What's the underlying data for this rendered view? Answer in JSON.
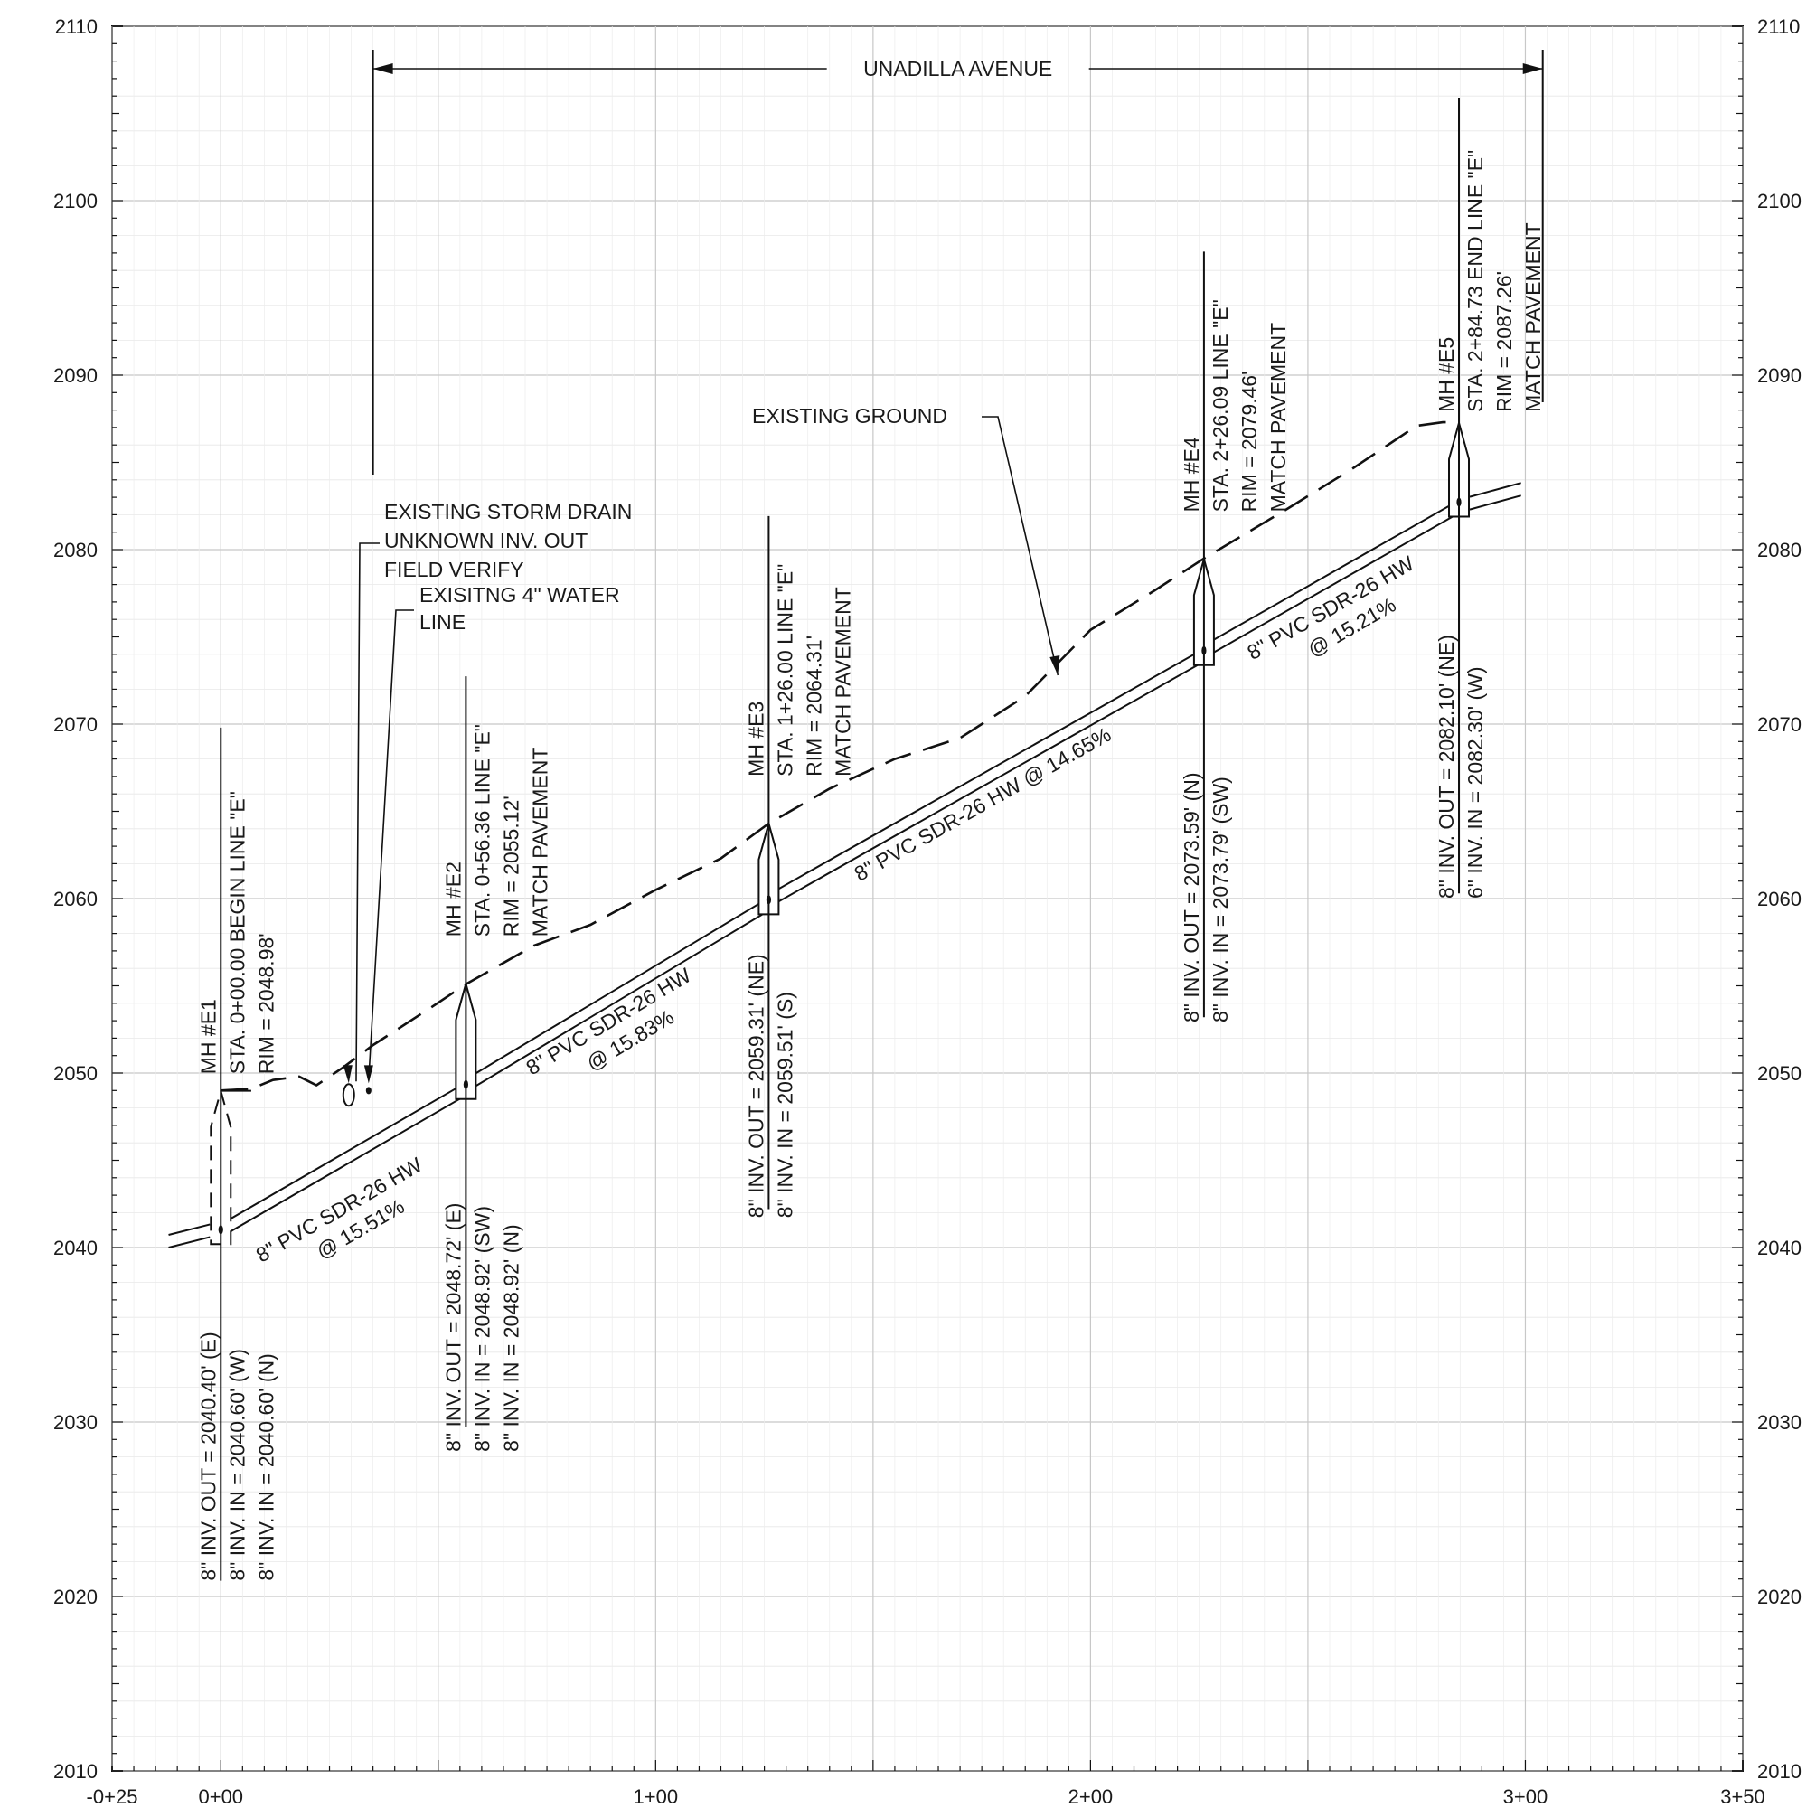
{
  "chart_data": {
    "type": "diagram",
    "x_axis": {
      "range_ft": [
        -25,
        350
      ],
      "ticks": [
        {
          "sta": -25,
          "label": "-0+25"
        },
        {
          "sta": 0,
          "label": "0+00"
        },
        {
          "sta": 100,
          "label": "1+00"
        },
        {
          "sta": 200,
          "label": "2+00"
        },
        {
          "sta": 300,
          "label": "3+00"
        },
        {
          "sta": 350,
          "label": "3+50"
        }
      ]
    },
    "y_axis": {
      "range": [
        2010,
        2110
      ],
      "ticks": [
        "2010",
        "2020",
        "2030",
        "2040",
        "2050",
        "2060",
        "2070",
        "2080",
        "2090",
        "2100",
        "2110"
      ]
    },
    "road": {
      "label": "UNADILLA AVENUE",
      "from_sta": 35,
      "to_sta": 304
    },
    "existing_ground": {
      "label": "EXISTING GROUND",
      "points": [
        [
          0,
          2049
        ],
        [
          7,
          2049.1
        ],
        [
          12,
          2049.6
        ],
        [
          18,
          2049.8
        ],
        [
          22,
          2049.3
        ],
        [
          28,
          2050.3
        ],
        [
          35,
          2051.6
        ],
        [
          48,
          2053.7
        ],
        [
          56.4,
          2055.1
        ],
        [
          72,
          2057.3
        ],
        [
          85,
          2058.5
        ],
        [
          100,
          2060.5
        ],
        [
          115,
          2062.3
        ],
        [
          126,
          2064.3
        ],
        [
          140,
          2066.3
        ],
        [
          155,
          2068
        ],
        [
          170,
          2069.2
        ],
        [
          185,
          2071.6
        ],
        [
          200,
          2075.4
        ],
        [
          215,
          2077.7
        ],
        [
          226.1,
          2079.5
        ],
        [
          245,
          2082.3
        ],
        [
          260,
          2084.6
        ],
        [
          275,
          2087.1
        ],
        [
          281,
          2087.3
        ],
        [
          284.7,
          2087.3
        ]
      ]
    },
    "manholes": [
      {
        "name": "MH #E1",
        "sta": 0,
        "rim": 2048.98,
        "inv": 2040.4,
        "top": [
          "MH #E1",
          "STA. 0+00.00 BEGIN LINE \"E\"",
          "RIM = 2048.98'"
        ],
        "bottom": [
          "8\" INV. OUT = 2040.40' (E)",
          "8\" INV. IN = 2040.60' (W)",
          "8\" INV. IN = 2040.60' (N)"
        ]
      },
      {
        "name": "MH #E2",
        "sta": 56.36,
        "rim": 2055.12,
        "inv": 2048.72,
        "top": [
          "MH #E2",
          "STA. 0+56.36 LINE \"E\"",
          "RIM = 2055.12'",
          "MATCH PAVEMENT"
        ],
        "bottom": [
          "8\" INV. OUT = 2048.72' (E)",
          "8\" INV. IN = 2048.92' (SW)",
          "8\" INV. IN = 2048.92' (N)"
        ]
      },
      {
        "name": "MH #E3",
        "sta": 126,
        "rim": 2064.31,
        "inv": 2059.31,
        "top": [
          "MH #E3",
          "STA. 1+26.00 LINE \"E\"",
          "RIM = 2064.31'",
          "MATCH PAVEMENT"
        ],
        "bottom": [
          "8\" INV. OUT = 2059.31' (NE)",
          "8\" INV. IN = 2059.51' (S)"
        ]
      },
      {
        "name": "MH #E4",
        "sta": 226.09,
        "rim": 2079.46,
        "inv": 2073.59,
        "top": [
          "MH #E4",
          "STA. 2+26.09 LINE \"E\"",
          "RIM = 2079.46'",
          "MATCH PAVEMENT"
        ],
        "bottom": [
          "8\" INV. OUT = 2073.59' (N)",
          "8\" INV. IN = 2073.79' (SW)"
        ]
      },
      {
        "name": "MH #E5",
        "sta": 284.73,
        "rim": 2087.26,
        "inv": 2082.1,
        "top": [
          "MH #E5",
          "STA. 2+84.73 END LINE \"E\"",
          "RIM = 2087.26'",
          "MATCH PAVEMENT"
        ],
        "bottom": [
          "8\" INV. OUT = 2082.10' (NE)",
          "6\" INV. IN = 2082.30' (W)"
        ]
      }
    ],
    "pipes": [
      {
        "label": [
          "8\" PVC SDR-26 HW",
          "@ 15.51%"
        ],
        "from_sta": 0,
        "from_inv": 2040.6,
        "to_sta": 56.36,
        "to_inv": 2048.72
      },
      {
        "label": [
          "8\" PVC SDR-26 HW",
          "@ 15.83%"
        ],
        "from_sta": 56.36,
        "from_inv": 2048.92,
        "to_sta": 126,
        "to_inv": 2059.31
      },
      {
        "label": [
          "8\" PVC SDR-26 HW @ 14.65%"
        ],
        "from_sta": 126,
        "from_inv": 2059.51,
        "to_sta": 226.09,
        "to_inv": 2073.59
      },
      {
        "label": [
          "8\" PVC SDR-26 HW",
          "@ 15.21%"
        ],
        "from_sta": 226.09,
        "from_inv": 2073.79,
        "to_sta": 284.73,
        "to_inv": 2082.1
      }
    ],
    "callouts": [
      {
        "name": "storm-drain",
        "lines": [
          "EXISTING STORM DRAIN",
          "UNKNOWN INV. OUT",
          "FIELD VERIFY"
        ],
        "sta": 29,
        "elev": 2049
      },
      {
        "name": "water-line",
        "lines": [
          "EXISITNG 4\" WATER",
          "LINE"
        ],
        "sta": 34,
        "elev": 2049.1
      }
    ]
  }
}
